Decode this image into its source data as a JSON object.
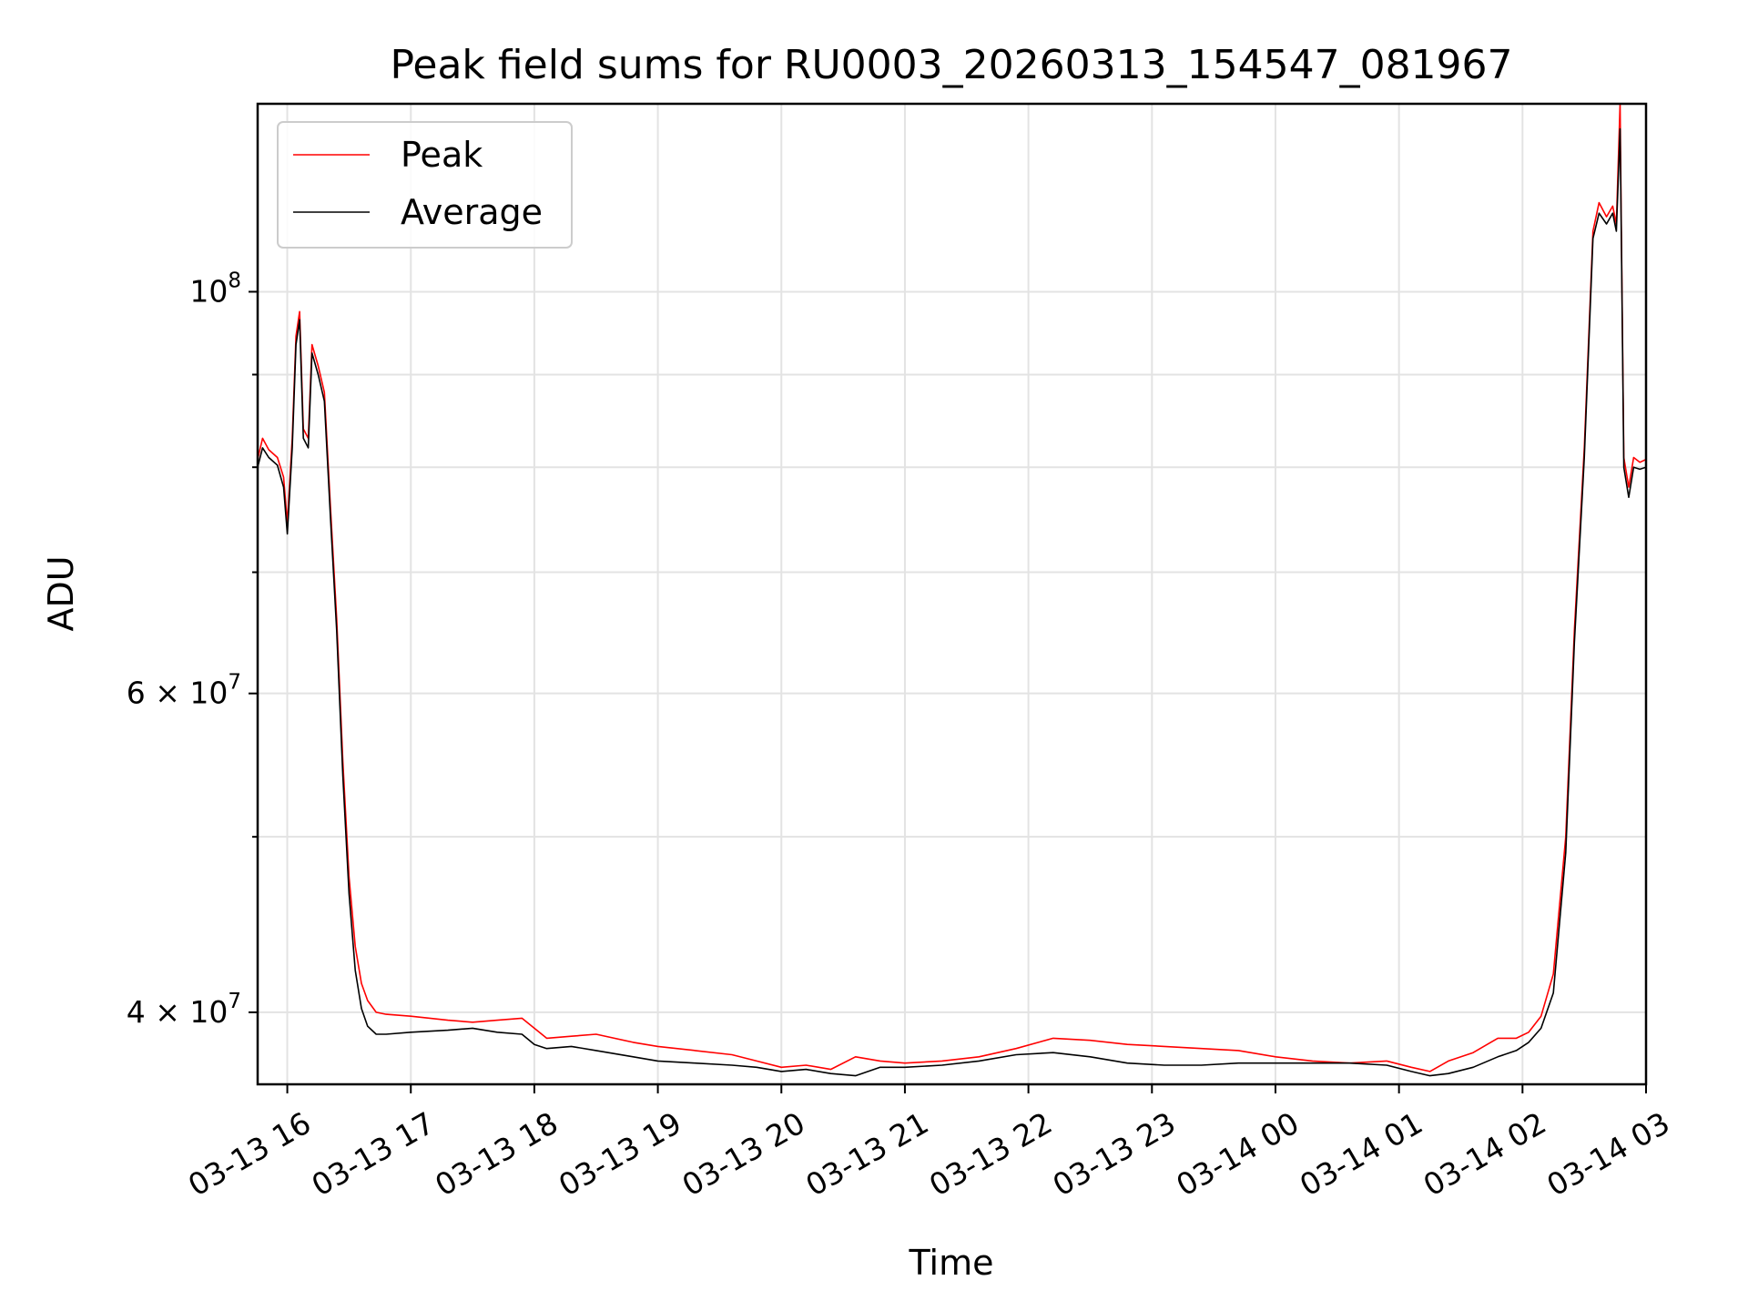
{
  "chart_data": {
    "type": "line",
    "title": "Peak field sums for RU0003_20260313_154547_081967",
    "xlabel": "Time",
    "ylabel": "ADU",
    "y_scale": "log",
    "ylim": [
      36500000,
      127000000
    ],
    "x_unit": "hours since 2026-03-13 00:00",
    "xlim": [
      15.76,
      27.0
    ],
    "grid": true,
    "legend_position": "upper-left",
    "x_ticks": [
      {
        "value": 16,
        "label": "03-13 16"
      },
      {
        "value": 17,
        "label": "03-13 17"
      },
      {
        "value": 18,
        "label": "03-13 18"
      },
      {
        "value": 19,
        "label": "03-13 19"
      },
      {
        "value": 20,
        "label": "03-13 20"
      },
      {
        "value": 21,
        "label": "03-13 21"
      },
      {
        "value": 22,
        "label": "03-13 22"
      },
      {
        "value": 23,
        "label": "03-13 23"
      },
      {
        "value": 24,
        "label": "03-14 00"
      },
      {
        "value": 25,
        "label": "03-14 01"
      },
      {
        "value": 26,
        "label": "03-14 02"
      },
      {
        "value": 27,
        "label": "03-14 03"
      }
    ],
    "y_ticks_major": [
      {
        "value": 40000000,
        "base": "4 × 10",
        "exp": "7"
      },
      {
        "value": 60000000,
        "base": "6 × 10",
        "exp": "7"
      },
      {
        "value": 100000000,
        "base": "10",
        "exp": "8"
      }
    ],
    "y_ticks_minor": [
      50000000,
      70000000,
      80000000,
      90000000
    ],
    "series": [
      {
        "name": "Peak",
        "color": "#ff0000",
        "points": [
          [
            15.76,
            80800000
          ],
          [
            15.8,
            83000000
          ],
          [
            15.85,
            81800000
          ],
          [
            15.92,
            81000000
          ],
          [
            15.97,
            79000000
          ],
          [
            16.0,
            74500000
          ],
          [
            16.04,
            83000000
          ],
          [
            16.07,
            94500000
          ],
          [
            16.1,
            97500000
          ],
          [
            16.13,
            84000000
          ],
          [
            16.17,
            83000000
          ],
          [
            16.2,
            93500000
          ],
          [
            16.25,
            91000000
          ],
          [
            16.3,
            88000000
          ],
          [
            16.35,
            76000000
          ],
          [
            16.4,
            66000000
          ],
          [
            16.45,
            55000000
          ],
          [
            16.5,
            47500000
          ],
          [
            16.55,
            43500000
          ],
          [
            16.6,
            41500000
          ],
          [
            16.65,
            40600000
          ],
          [
            16.72,
            40000000
          ],
          [
            16.8,
            39900000
          ],
          [
            17.0,
            39800000
          ],
          [
            17.3,
            39600000
          ],
          [
            17.5,
            39500000
          ],
          [
            17.7,
            39600000
          ],
          [
            17.9,
            39700000
          ],
          [
            18.0,
            39200000
          ],
          [
            18.1,
            38700000
          ],
          [
            18.3,
            38800000
          ],
          [
            18.5,
            38900000
          ],
          [
            18.8,
            38500000
          ],
          [
            19.0,
            38300000
          ],
          [
            19.3,
            38100000
          ],
          [
            19.6,
            37900000
          ],
          [
            19.8,
            37600000
          ],
          [
            20.0,
            37300000
          ],
          [
            20.2,
            37400000
          ],
          [
            20.4,
            37200000
          ],
          [
            20.6,
            37800000
          ],
          [
            20.8,
            37600000
          ],
          [
            21.0,
            37500000
          ],
          [
            21.3,
            37600000
          ],
          [
            21.6,
            37800000
          ],
          [
            21.9,
            38200000
          ],
          [
            22.2,
            38700000
          ],
          [
            22.5,
            38600000
          ],
          [
            22.8,
            38400000
          ],
          [
            23.1,
            38300000
          ],
          [
            23.4,
            38200000
          ],
          [
            23.7,
            38100000
          ],
          [
            24.0,
            37800000
          ],
          [
            24.3,
            37600000
          ],
          [
            24.6,
            37500000
          ],
          [
            24.9,
            37600000
          ],
          [
            25.1,
            37300000
          ],
          [
            25.25,
            37100000
          ],
          [
            25.4,
            37600000
          ],
          [
            25.6,
            38000000
          ],
          [
            25.8,
            38700000
          ],
          [
            25.95,
            38700000
          ],
          [
            26.05,
            39000000
          ],
          [
            26.15,
            39800000
          ],
          [
            26.25,
            42000000
          ],
          [
            26.35,
            50000000
          ],
          [
            26.42,
            65000000
          ],
          [
            26.5,
            82000000
          ],
          [
            26.57,
            108000000
          ],
          [
            26.62,
            112000000
          ],
          [
            26.68,
            110000000
          ],
          [
            26.73,
            111500000
          ],
          [
            26.76,
            109000000
          ],
          [
            26.79,
            127000000
          ],
          [
            26.8,
            108000000
          ],
          [
            26.82,
            81000000
          ],
          [
            26.86,
            78000000
          ],
          [
            26.9,
            81000000
          ],
          [
            26.95,
            80500000
          ],
          [
            27.0,
            80800000
          ]
        ]
      },
      {
        "name": "Average",
        "color": "#000000",
        "points": [
          [
            15.76,
            80000000
          ],
          [
            15.8,
            82000000
          ],
          [
            15.85,
            81000000
          ],
          [
            15.92,
            80200000
          ],
          [
            15.97,
            78000000
          ],
          [
            16.0,
            73500000
          ],
          [
            16.04,
            82000000
          ],
          [
            16.07,
            93500000
          ],
          [
            16.1,
            96500000
          ],
          [
            16.13,
            83000000
          ],
          [
            16.17,
            82000000
          ],
          [
            16.2,
            92500000
          ],
          [
            16.25,
            90000000
          ],
          [
            16.3,
            87000000
          ],
          [
            16.35,
            75000000
          ],
          [
            16.4,
            65000000
          ],
          [
            16.45,
            54000000
          ],
          [
            16.5,
            46500000
          ],
          [
            16.55,
            42200000
          ],
          [
            16.6,
            40200000
          ],
          [
            16.65,
            39300000
          ],
          [
            16.72,
            38900000
          ],
          [
            16.8,
            38900000
          ],
          [
            17.0,
            39000000
          ],
          [
            17.3,
            39100000
          ],
          [
            17.5,
            39200000
          ],
          [
            17.7,
            39000000
          ],
          [
            17.9,
            38900000
          ],
          [
            18.0,
            38400000
          ],
          [
            18.1,
            38200000
          ],
          [
            18.3,
            38300000
          ],
          [
            18.5,
            38100000
          ],
          [
            18.8,
            37800000
          ],
          [
            19.0,
            37600000
          ],
          [
            19.3,
            37500000
          ],
          [
            19.6,
            37400000
          ],
          [
            19.8,
            37300000
          ],
          [
            20.0,
            37100000
          ],
          [
            20.2,
            37200000
          ],
          [
            20.4,
            37000000
          ],
          [
            20.6,
            36900000
          ],
          [
            20.8,
            37300000
          ],
          [
            21.0,
            37300000
          ],
          [
            21.3,
            37400000
          ],
          [
            21.6,
            37600000
          ],
          [
            21.9,
            37900000
          ],
          [
            22.2,
            38000000
          ],
          [
            22.5,
            37800000
          ],
          [
            22.8,
            37500000
          ],
          [
            23.1,
            37400000
          ],
          [
            23.4,
            37400000
          ],
          [
            23.7,
            37500000
          ],
          [
            24.0,
            37500000
          ],
          [
            24.3,
            37500000
          ],
          [
            24.6,
            37500000
          ],
          [
            24.9,
            37400000
          ],
          [
            25.1,
            37100000
          ],
          [
            25.25,
            36900000
          ],
          [
            25.4,
            37000000
          ],
          [
            25.6,
            37300000
          ],
          [
            25.8,
            37800000
          ],
          [
            25.95,
            38100000
          ],
          [
            26.05,
            38500000
          ],
          [
            26.15,
            39200000
          ],
          [
            26.25,
            41000000
          ],
          [
            26.35,
            49000000
          ],
          [
            26.42,
            64000000
          ],
          [
            26.5,
            81000000
          ],
          [
            26.57,
            107000000
          ],
          [
            26.62,
            110500000
          ],
          [
            26.68,
            109000000
          ],
          [
            26.73,
            110500000
          ],
          [
            26.76,
            108000000
          ],
          [
            26.79,
            123000000
          ],
          [
            26.8,
            107000000
          ],
          [
            26.82,
            80000000
          ],
          [
            26.86,
            77000000
          ],
          [
            26.9,
            80000000
          ],
          [
            26.95,
            79800000
          ],
          [
            27.0,
            80000000
          ]
        ]
      }
    ]
  }
}
